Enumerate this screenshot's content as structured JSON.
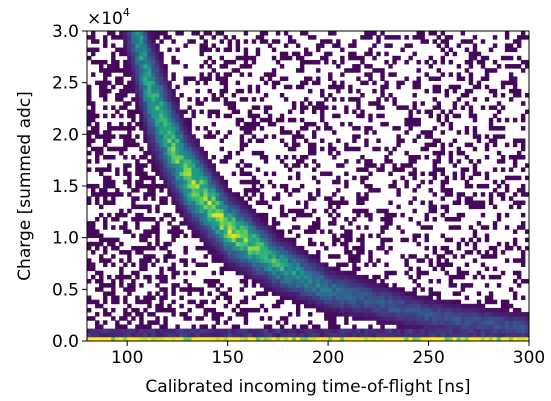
{
  "chart_data": {
    "type": "heatmap",
    "title": "",
    "xlabel": "Calibrated incoming time-of-flight [ns]",
    "ylabel": "Charge [summed adc]",
    "xlim": [
      80,
      300
    ],
    "ylim": [
      0,
      30000
    ],
    "x_ticks": [
      "100",
      "150",
      "200",
      "250",
      "300"
    ],
    "y_ticks": [
      "0.0",
      "0.5",
      "1.0",
      "1.5",
      "2.0",
      "2.5",
      "3.0"
    ],
    "y_offset_text": "×10",
    "y_offset_exponent": "4",
    "colormap": "viridis",
    "grid": false,
    "band": {
      "description_points": [
        {
          "tof": 105,
          "charge": 30000
        },
        {
          "tof": 110,
          "charge": 25000
        },
        {
          "tof": 120,
          "charge": 20000
        },
        {
          "tof": 130,
          "charge": 16000
        },
        {
          "tof": 150,
          "charge": 11000
        },
        {
          "tof": 175,
          "charge": 7500
        },
        {
          "tof": 200,
          "charge": 5000
        },
        {
          "tof": 250,
          "charge": 2500
        },
        {
          "tof": 300,
          "charge": 1200
        }
      ],
      "peak_tof": 145,
      "peak_charge": 11500
    },
    "baseline_charge": 300
  }
}
